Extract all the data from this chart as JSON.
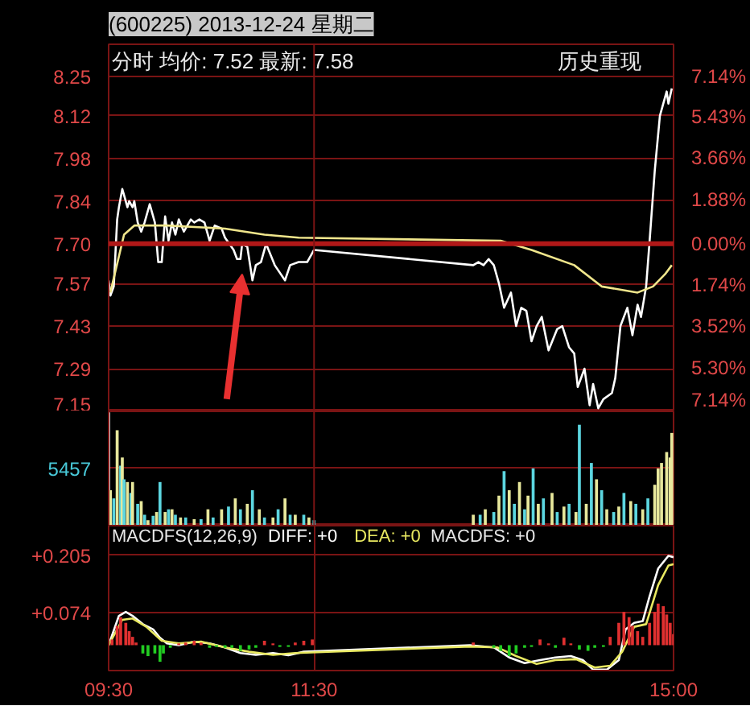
{
  "chart_data": [
    {
      "type": "line",
      "title": "(600225) 2013-12-24 星期二",
      "annotations": [
        "分时 均价: 7.52 最新: 7.58",
        "历史重现"
      ],
      "series": [
        {
          "color": "#ffffff",
          "x": [
            9.5,
            9.517,
            9.55,
            9.583,
            9.6,
            9.633,
            9.65,
            9.683,
            9.7,
            9.733,
            9.75,
            9.783,
            9.817,
            9.85,
            9.9,
            9.95,
            9.983,
            10.017,
            10.05,
            10.083,
            10.117,
            10.15,
            10.183,
            10.233,
            10.3,
            10.333,
            10.383,
            10.433,
            10.483,
            10.533,
            10.6,
            10.633,
            10.717,
            10.75,
            10.783,
            10.8,
            10.85,
            10.9,
            10.933,
            10.983,
            11.033,
            11.117,
            11.217,
            11.267,
            11.35,
            11.433,
            11.5,
            13.05,
            13.1,
            13.15,
            13.2,
            13.25,
            13.3,
            13.35,
            13.417,
            13.467,
            13.517,
            13.567,
            13.617,
            13.667,
            13.717,
            13.783,
            13.867,
            13.917,
            13.983,
            14.033,
            14.067,
            14.133,
            14.183,
            14.217,
            14.267,
            14.317,
            14.4,
            14.433,
            14.483,
            14.55,
            14.6,
            14.65,
            14.683,
            14.733,
            14.767,
            14.817,
            14.867,
            14.933,
            14.95,
            14.983
          ],
          "values": [
            7.58,
            7.53,
            7.56,
            7.78,
            7.82,
            7.88,
            7.86,
            7.82,
            7.84,
            7.82,
            7.84,
            7.77,
            7.74,
            7.77,
            7.83,
            7.77,
            7.64,
            7.64,
            7.79,
            7.71,
            7.77,
            7.73,
            7.78,
            7.74,
            7.78,
            7.77,
            7.78,
            7.77,
            7.71,
            7.76,
            7.75,
            7.72,
            7.68,
            7.65,
            7.65,
            7.7,
            7.69,
            7.58,
            7.63,
            7.64,
            7.7,
            7.63,
            7.58,
            7.63,
            7.64,
            7.64,
            7.68,
            7.63,
            7.64,
            7.63,
            7.65,
            7.63,
            7.57,
            7.49,
            7.54,
            7.43,
            7.49,
            7.48,
            7.38,
            7.43,
            7.46,
            7.35,
            7.42,
            7.43,
            7.36,
            7.34,
            7.23,
            7.29,
            7.17,
            7.24,
            7.16,
            7.19,
            7.21,
            7.26,
            7.43,
            7.49,
            7.4,
            7.5,
            7.46,
            7.56,
            7.71,
            7.94,
            8.12,
            8.2,
            8.16,
            8.21
          ]
        },
        {
          "color": "#f0e68c",
          "x": [
            9.517,
            9.65,
            9.75,
            10.067,
            10.633,
            11.017,
            11.35,
            13.317,
            13.617,
            14.033,
            14.3,
            14.65,
            14.8,
            14.917,
            14.983
          ],
          "values": [
            7.54,
            7.73,
            7.76,
            7.76,
            7.75,
            7.73,
            7.72,
            7.71,
            7.68,
            7.63,
            7.56,
            7.54,
            7.56,
            7.6,
            7.63
          ]
        }
      ],
      "xlim": [
        9.5,
        15
      ],
      "tick_labels": "y",
      "ylim": [
        7.15,
        8.355
      ],
      "yticks": [
        8.25,
        8.12,
        7.98,
        7.84,
        {
          "value": 7.7,
          "label": "7.70"
        },
        7.57,
        7.43,
        7.29,
        7.15
      ],
      "y2lim": [
        -7.14,
        8.5
      ],
      "y2ticks": [
        {
          "value": 7.14,
          "label": "7.14%"
        },
        {
          "value": 5.43,
          "label": "5.43%"
        },
        {
          "value": 3.66,
          "label": "3.66%"
        },
        {
          "value": 1.88,
          "label": "1.88%"
        },
        {
          "value": 0,
          "label": "0.00%"
        },
        {
          "value": -1.74,
          "label": "1.74%"
        },
        {
          "value": -3.52,
          "label": "3.52%"
        },
        {
          "value": -5.3,
          "label": "5.30%"
        },
        {
          "value": -7.14,
          "label": "7.14%"
        }
      ],
      "ref_lines": [
        {
          "axis": "y",
          "value": 7.7,
          "color": "#b01818"
        },
        {
          "axis": "x",
          "value": 11.5,
          "color": "#7a1414"
        }
      ],
      "grid": "y"
    },
    {
      "type": "bar",
      "x": [
        9.5,
        9.517,
        9.55,
        9.583,
        9.617,
        9.633,
        9.65,
        9.683,
        9.717,
        9.733,
        9.783,
        9.817,
        9.85,
        9.883,
        9.933,
        9.967,
        10,
        10.05,
        10.083,
        10.117,
        10.15,
        10.2,
        10.25,
        10.333,
        10.4,
        10.467,
        10.517,
        10.6,
        10.667,
        10.733,
        10.783,
        10.85,
        10.9,
        10.967,
        11.017,
        11.1,
        11.15,
        11.217,
        11.267,
        11.317,
        11.4,
        11.45,
        11.5,
        13.05,
        13.117,
        13.167,
        13.25,
        13.3,
        13.35,
        13.4,
        13.45,
        13.5,
        13.55,
        13.583,
        13.633,
        13.683,
        13.733,
        13.817,
        13.867,
        13.933,
        13.983,
        14.05,
        14.083,
        14.15,
        14.2,
        14.25,
        14.3,
        14.35,
        14.417,
        14.467,
        14.517,
        14.583,
        14.633,
        14.7,
        14.75,
        14.817,
        14.85,
        14.883,
        14.933,
        14.967,
        14.983
      ],
      "values": [
        10800,
        3380,
        2600,
        9100,
        5720,
        6500,
        4420,
        4160,
        3120,
        4160,
        2080,
        2340,
        1040,
        520,
        940,
        1300,
        4160,
        1300,
        1560,
        1560,
        1040,
        780,
        780,
        620,
        620,
        1560,
        780,
        1560,
        1820,
        2600,
        1560,
        2080,
        3380,
        1560,
        780,
        780,
        1560,
        2600,
        1040,
        1040,
        1040,
        780,
        520,
        1040,
        1040,
        1560,
        1300,
        2860,
        5200,
        3380,
        2080,
        4160,
        1560,
        2860,
        5460,
        2080,
        2600,
        3120,
        1300,
        1820,
        2080,
        1300,
        9620,
        2080,
        5980,
        4420,
        3380,
        1560,
        1300,
        1820,
        3120,
        2340,
        2080,
        1560,
        2600,
        3900,
        5460,
        5980,
        7020,
        6500,
        8840
      ],
      "colors": [
        "#ffffff",
        "#e8e89c",
        "#5cd6e0",
        "#e8e89c",
        "#5cd6e0",
        "#e8e89c",
        "#5cd6e0",
        "#e8e89c",
        "#5cd6e0",
        "#e8e89c",
        "#5cd6e0",
        "#e8e89c",
        "#5cd6e0",
        "#e8e89c",
        "#5cd6e0",
        "#e8e89c",
        "#5cd6e0",
        "#e8e89c",
        "#5cd6e0",
        "#e8e89c",
        "#5cd6e0",
        "#e8e89c",
        "#5cd6e0",
        "#e8e89c",
        "#5cd6e0",
        "#e8e89c",
        "#5cd6e0",
        "#e8e89c",
        "#5cd6e0",
        "#e8e89c",
        "#5cd6e0",
        "#e8e89c",
        "#5cd6e0",
        "#e8e89c",
        "#5cd6e0",
        "#e8e89c",
        "#5cd6e0",
        "#e8e89c",
        "#5cd6e0",
        "#e8e89c",
        "#5cd6e0",
        "#e8e89c",
        "#5cd6e0",
        "#e8e89c",
        "#5cd6e0",
        "#e8e89c",
        "#5cd6e0",
        "#e8e89c",
        "#5cd6e0",
        "#e8e89c",
        "#5cd6e0",
        "#e8e89c",
        "#5cd6e0",
        "#e8e89c",
        "#5cd6e0",
        "#e8e89c",
        "#5cd6e0",
        "#e8e89c",
        "#5cd6e0",
        "#e8e89c",
        "#5cd6e0",
        "#e8e89c",
        "#5cd6e0",
        "#e8e89c",
        "#5cd6e0",
        "#e8e89c",
        "#5cd6e0",
        "#e8e89c",
        "#5cd6e0",
        "#e8e89c",
        "#5cd6e0",
        "#e8e89c",
        "#5cd6e0",
        "#e8e89c",
        "#5cd6e0",
        "#e8e89c",
        "#e8e89c",
        "#e8e89c",
        "#e8e89c",
        "#e8e89c",
        "#e8e89c"
      ],
      "xlim": [
        9.5,
        15
      ],
      "ylim": [
        0,
        10900
      ],
      "yticks": [
        {
          "value": 0,
          "label": null
        },
        5457
      ],
      "tick_labels": "y",
      "grid": "y",
      "ref_lines": [
        {
          "axis": "x",
          "value": 11.5,
          "color": "#7a1414"
        }
      ]
    },
    {
      "type": "line",
      "title": "MACDFS(12,26,9)",
      "annotations": [
        "DIFF: +0",
        "DEA: +0",
        "MACDFS: +0"
      ],
      "series": [
        {
          "color": "#ffffff",
          "x": [
            9.5,
            9.6,
            9.667,
            9.733,
            9.833,
            9.933,
            10,
            10.067,
            10.183,
            10.333,
            10.483,
            10.633,
            10.783,
            10.933,
            11.1,
            11.25,
            11.4,
            13.017,
            13.25,
            13.4,
            13.55,
            13.7,
            13.85,
            14,
            14.117,
            14.217,
            14.35,
            14.467,
            14.533,
            14.617,
            14.7,
            14.767,
            14.85,
            14.95,
            15
          ],
          "values": [
            0,
            0.067,
            0.076,
            0.067,
            0.048,
            0.036,
            0.017,
            0.004,
            0,
            0.008,
            0.004,
            -0.005,
            -0.018,
            -0.022,
            -0.018,
            -0.023,
            -0.015,
            0,
            -0.005,
            -0.028,
            -0.041,
            -0.034,
            -0.028,
            -0.025,
            -0.034,
            -0.056,
            -0.056,
            -0.034,
            0.036,
            0.051,
            0.055,
            0.112,
            0.175,
            0.204,
            0.201
          ]
        },
        {
          "color": "#e8e860",
          "x": [
            9.5,
            9.633,
            9.733,
            9.867,
            10.017,
            10.183,
            10.4,
            10.633,
            10.867,
            11.1,
            11.317,
            13.017,
            13.283,
            13.467,
            13.667,
            13.85,
            14.05,
            14.233,
            14.383,
            14.5,
            14.617,
            14.733,
            14.85,
            14.95,
            15
          ],
          "values": [
            0,
            0.058,
            0.061,
            0.042,
            0.01,
            0.004,
            0.008,
            -0.005,
            -0.015,
            -0.022,
            -0.018,
            -0.003,
            -0.005,
            -0.025,
            -0.043,
            -0.034,
            -0.032,
            -0.051,
            -0.047,
            -0.015,
            0.042,
            0.048,
            0.137,
            0.182,
            0.185
          ]
        },
        {
          "type": "bar",
          "x": [
            9.533,
            9.583,
            9.617,
            9.667,
            9.7,
            9.733,
            9.767,
            9.833,
            9.883,
            9.95,
            10,
            10.033,
            10.1,
            10.183,
            10.25,
            10.333,
            10.4,
            10.483,
            10.55,
            10.633,
            10.7,
            10.783,
            10.867,
            10.933,
            11.017,
            11.1,
            11.167,
            11.25,
            11.317,
            11.4,
            11.483,
            13.05,
            13.25,
            13.317,
            13.4,
            13.467,
            13.55,
            13.617,
            13.7,
            13.783,
            13.85,
            13.933,
            14,
            14.083,
            14.167,
            14.233,
            14.317,
            14.383,
            14.467,
            14.517,
            14.567,
            14.6,
            14.65,
            14.7,
            14.767,
            14.817,
            14.85,
            14.9,
            14.933,
            14.967,
            15
          ],
          "values": [
            0.013,
            0.044,
            0.064,
            0.051,
            0.032,
            0.019,
            0.006,
            -0.019,
            -0.025,
            -0.019,
            -0.038,
            -0.019,
            -0.006,
            0.004,
            0.006,
            0.01,
            0.006,
            -0.006,
            -0.004,
            -0.006,
            -0.006,
            -0.013,
            -0.01,
            -0.006,
            0.01,
            0.004,
            -0.004,
            -0.004,
            0.006,
            0.01,
            0.013,
            0.006,
            -0.006,
            -0.013,
            -0.025,
            -0.019,
            -0.006,
            -0.004,
            0.013,
            0.004,
            -0.006,
            0.017,
            0.004,
            -0.01,
            -0.013,
            -0.006,
            -0.004,
            0.019,
            0.051,
            0.076,
            0.064,
            0.044,
            0.032,
            0.019,
            0.051,
            0.076,
            0.095,
            0.089,
            0.07,
            0.051,
            0.025
          ],
          "colors": [
            "#e03030",
            "#e03030",
            "#e03030",
            "#e03030",
            "#e03030",
            "#e03030",
            "#e03030",
            "#22cc22",
            "#22cc22",
            "#22cc22",
            "#22cc22",
            "#22cc22",
            "#22cc22",
            "#e03030",
            "#e03030",
            "#e03030",
            "#e03030",
            "#22cc22",
            "#22cc22",
            "#22cc22",
            "#22cc22",
            "#22cc22",
            "#22cc22",
            "#22cc22",
            "#e03030",
            "#e03030",
            "#22cc22",
            "#22cc22",
            "#e03030",
            "#e03030",
            "#e03030",
            "#e03030",
            "#22cc22",
            "#22cc22",
            "#22cc22",
            "#22cc22",
            "#22cc22",
            "#22cc22",
            "#e03030",
            "#e03030",
            "#22cc22",
            "#e03030",
            "#e03030",
            "#22cc22",
            "#22cc22",
            "#22cc22",
            "#22cc22",
            "#e03030",
            "#e03030",
            "#e03030",
            "#e03030",
            "#e03030",
            "#e03030",
            "#e03030",
            "#e03030",
            "#e03030",
            "#e03030",
            "#e03030",
            "#e03030",
            "#e03030",
            "#e03030"
          ]
        }
      ],
      "xlim": [
        9.5,
        15
      ],
      "xticks": [
        {
          "value": 9.5,
          "label": "09:30"
        },
        {
          "value": 11.5,
          "label": "11:30"
        },
        {
          "value": 15,
          "label": "15:00"
        }
      ],
      "ylim": [
        -0.058,
        0.273
      ],
      "yticks": [
        {
          "value": 0.205,
          "label": "+0.205"
        },
        {
          "value": 0.074,
          "label": "+0.074"
        }
      ],
      "grid": true
    }
  ]
}
